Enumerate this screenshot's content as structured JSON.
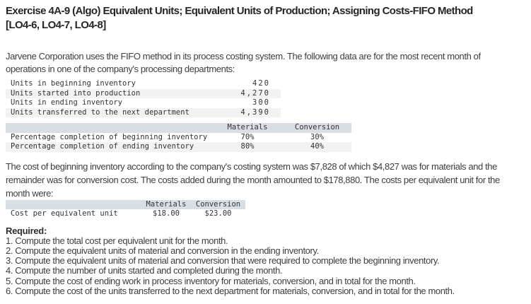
{
  "colors": {
    "table_header_bg": "#d9dee4",
    "row_alt_bg": "#f2f2f2",
    "text_primary": "#3d3d3d",
    "title_color": "#262626",
    "mono_text": "#333333"
  },
  "page": {
    "title": "Exercise 4A-9 (Algo) Equivalent Units; Equivalent Units of Production; Assigning Costs-FIFO Method\n[LO4-6, LO4-7, LO4-8]",
    "intro": "Jarvene Corporation uses the FIFO method in its process costing system. The following data are for the most recent month of\noperations in one of the company's processing departments:",
    "cost_paragraph": "The cost of beginning inventory according to the company's costing system was $7,828 of which $4,827 was for materials and the\nremainder was for conversion cost. The costs added during the month amounted to $178,880. The costs per equivalent unit for the\nmonth were:"
  },
  "units_table": {
    "rows": [
      {
        "label": "Units in beginning inventory",
        "value": "420"
      },
      {
        "label": "Units started into production",
        "value": "4,270"
      },
      {
        "label": "Units in ending inventory",
        "value": "300"
      },
      {
        "label": "Units transferred to the next department",
        "value": "4,390"
      }
    ]
  },
  "completion_table": {
    "headers": {
      "materials": "Materials",
      "conversion": "Conversion"
    },
    "rows": [
      {
        "label": "Percentage completion of beginning inventory",
        "materials": "70%",
        "conversion": "30%"
      },
      {
        "label": "Percentage completion of ending inventory",
        "materials": "80%",
        "conversion": "40%"
      }
    ]
  },
  "cost_table": {
    "headers": {
      "materials": "Materials",
      "conversion": "Conversion"
    },
    "rows": [
      {
        "label": "Cost per equivalent unit",
        "materials": "$18.00",
        "conversion": "$23.00"
      }
    ]
  },
  "required": {
    "heading": "Required:",
    "items": [
      "1. Compute the total cost per equivalent unit for the month.",
      "2. Compute the equivalent units of material and conversion in the ending inventory.",
      "3. Compute the equivalent units of material and conversion that were required to complete the beginning inventory.",
      "4. Compute the number of units started and completed during the month.",
      "5. Compute the cost of ending work in process inventory for materials, conversion, and in total for the month.",
      "6. Compute the cost of the units transferred to the next department for materials, conversion, and in total for the month."
    ]
  }
}
